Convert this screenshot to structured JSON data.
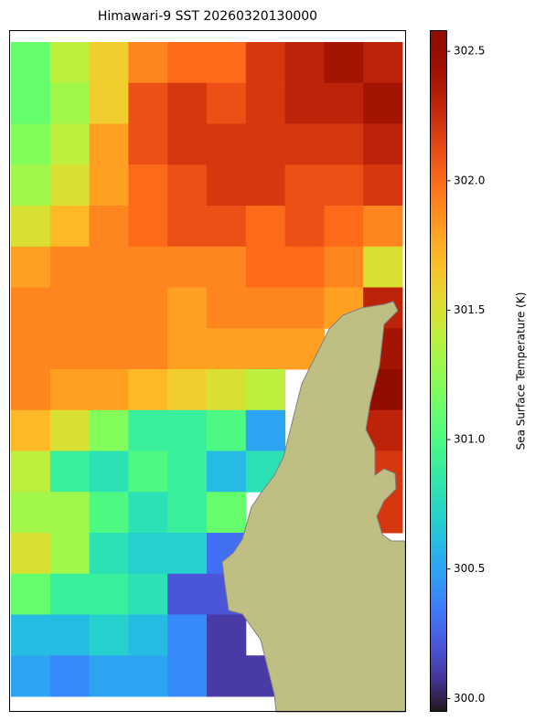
{
  "chart_data": {
    "type": "heatmap",
    "title": "Himawari-9 SST 20260320130000",
    "colorbar_label": "Sea Surface Temperature (K)",
    "colormap": "turbo",
    "clim": [
      299.95,
      302.58
    ],
    "cticks": [
      {
        "value": 300,
        "label": "300.0"
      },
      300.5,
      {
        "value": 301,
        "label": "301.0"
      },
      301.5,
      {
        "value": 302,
        "label": "302.0"
      },
      302.5
    ],
    "values": [
      [
        301.1,
        301.4,
        301.6,
        301.9,
        302.0,
        302.0,
        302.2,
        302.3,
        302.4,
        302.3
      ],
      [
        301.1,
        301.3,
        301.6,
        302.1,
        302.2,
        302.1,
        302.2,
        302.3,
        302.3,
        302.4
      ],
      [
        301.2,
        301.4,
        301.8,
        302.1,
        302.2,
        302.2,
        302.2,
        302.2,
        302.2,
        302.3
      ],
      [
        301.3,
        301.5,
        301.8,
        302.0,
        302.1,
        302.2,
        302.2,
        302.1,
        302.1,
        302.2
      ],
      [
        301.5,
        301.7,
        301.9,
        302.0,
        302.1,
        302.1,
        302.0,
        302.1,
        302.0,
        301.9
      ],
      [
        301.8,
        301.9,
        301.9,
        301.9,
        301.9,
        301.9,
        302.0,
        302.0,
        301.9,
        301.5
      ],
      [
        301.9,
        301.9,
        301.9,
        301.9,
        301.8,
        301.9,
        301.9,
        301.9,
        301.8,
        302.3
      ],
      [
        301.9,
        301.9,
        301.9,
        301.9,
        301.8,
        301.8,
        301.8,
        301.8,
        null,
        302.4
      ],
      [
        301.9,
        301.8,
        301.8,
        301.7,
        301.6,
        301.5,
        301.4,
        null,
        null,
        302.5
      ],
      [
        301.7,
        301.5,
        301.2,
        300.9,
        300.9,
        301.0,
        300.5,
        null,
        null,
        302.3
      ],
      [
        301.4,
        300.9,
        300.8,
        301.0,
        300.9,
        300.6,
        300.8,
        null,
        null,
        302.2
      ],
      [
        301.3,
        301.3,
        301.0,
        300.8,
        300.9,
        301.1,
        null,
        null,
        null,
        302.2
      ],
      [
        301.5,
        301.3,
        300.8,
        300.7,
        300.7,
        300.3,
        null,
        null,
        null,
        null
      ],
      [
        301.1,
        300.9,
        300.9,
        300.8,
        300.2,
        300.2,
        null,
        null,
        null,
        null
      ],
      [
        300.6,
        300.6,
        300.7,
        300.6,
        300.4,
        300.1,
        null,
        null,
        null,
        null
      ],
      [
        300.5,
        300.4,
        300.5,
        300.5,
        300.4,
        300.1,
        300.1,
        null,
        null,
        null
      ]
    ]
  }
}
